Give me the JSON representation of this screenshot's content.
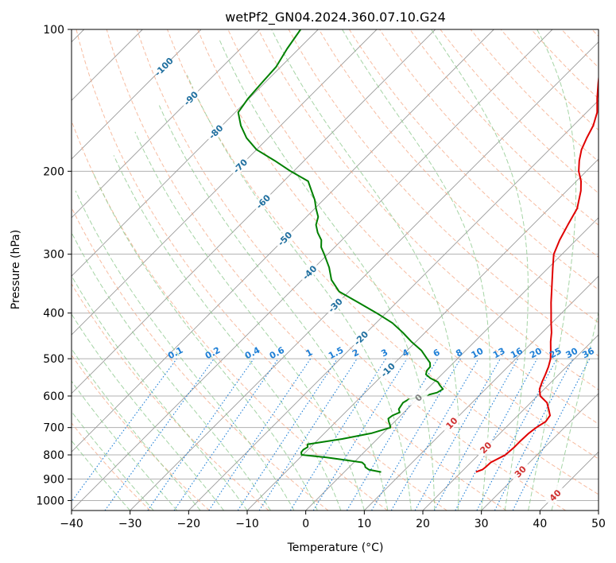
{
  "chart_data": {
    "type": "line",
    "title": "wetPf2_GN04.2024.360.07.10.G24",
    "xlabel": "Temperature (°C)",
    "ylabel": "Pressure (hPa)",
    "xlim": [
      -40,
      50
    ],
    "ylim": [
      1050,
      100
    ],
    "y_scale": "log",
    "grid": true,
    "x_ticks": [
      "−40",
      "−30",
      "−20",
      "−10",
      "0",
      "10",
      "20",
      "30",
      "40",
      "50"
    ],
    "x_tick_values": [
      -40,
      -30,
      -20,
      -10,
      0,
      10,
      20,
      30,
      40,
      50
    ],
    "y_ticks": [
      "100",
      "200",
      "300",
      "400",
      "500",
      "600",
      "700",
      "800",
      "900",
      "1000"
    ],
    "y_tick_values": [
      100,
      200,
      300,
      400,
      500,
      600,
      700,
      800,
      900,
      1000
    ],
    "colors": {
      "temperature": "#e00000",
      "dewpoint": "#008000",
      "isotherm": "#9a9a9a",
      "dry_adiabat": "#f4a582",
      "moist_adiabat": "#8fc98f",
      "mixing_ratio": "#1e7fd6",
      "isotherm_label": "#1f6f9f",
      "warm_label": "#d03030",
      "zero_label": "#808080",
      "grid": "#b0b0b0"
    },
    "isotherm_labels": [
      {
        "text": "-100",
        "t": -100,
        "p": 120
      },
      {
        "text": "-90",
        "t": -90,
        "p": 140
      },
      {
        "text": "-80",
        "t": -80,
        "p": 165
      },
      {
        "text": "-70",
        "t": -70,
        "p": 195
      },
      {
        "text": "-60",
        "t": -60,
        "p": 232
      },
      {
        "text": "-50",
        "t": -50,
        "p": 278
      },
      {
        "text": "-40",
        "t": -40,
        "p": 328
      },
      {
        "text": "-30",
        "t": -30,
        "p": 385
      },
      {
        "text": "-20",
        "t": -20,
        "p": 452
      },
      {
        "text": "-10",
        "t": -10,
        "p": 528
      },
      {
        "text": "0",
        "t": 0,
        "p": 605
      },
      {
        "text": "10",
        "t": 10,
        "p": 685
      },
      {
        "text": "20",
        "t": 20,
        "p": 772
      },
      {
        "text": "30",
        "t": 30,
        "p": 868
      },
      {
        "text": "40",
        "t": 40,
        "p": 975
      }
    ],
    "mixing_ratio_labels": [
      "0.1",
      "0.2",
      "0.4",
      "0.6",
      "1",
      "1.5",
      "2",
      "3",
      "4",
      "6",
      "8",
      "10",
      "13",
      "16",
      "20",
      "25",
      "30",
      "36"
    ],
    "mixing_ratio_values": [
      0.1,
      0.2,
      0.4,
      0.6,
      1,
      1.5,
      2,
      3,
      4,
      6,
      8,
      10,
      13,
      16,
      20,
      25,
      30,
      36
    ],
    "series": [
      {
        "key": "temperature",
        "p": [
          870,
          860,
          850,
          830,
          800,
          770,
          750,
          720,
          700,
          680,
          660,
          640,
          620,
          600,
          580,
          560,
          540,
          520,
          500,
          480,
          460,
          440,
          420,
          400,
          380,
          360,
          340,
          320,
          300,
          280,
          260,
          240,
          220,
          210,
          200,
          190,
          180,
          170,
          160,
          150,
          140,
          130,
          120,
          110,
          100
        ],
        "values": [
          22.5,
          23.2,
          23.3,
          23.4,
          24.6,
          24.8,
          24.8,
          24.9,
          25.2,
          25.8,
          25.5,
          24.2,
          22.8,
          20.5,
          19.2,
          18.4,
          17.7,
          16.9,
          15.9,
          14.5,
          13.0,
          11.6,
          9.9,
          8.2,
          6.4,
          4.6,
          2.7,
          0.7,
          -1.4,
          -2.8,
          -4.0,
          -5.2,
          -7.6,
          -9.2,
          -11.3,
          -13.0,
          -14.5,
          -15.6,
          -16.6,
          -18.2,
          -20.6,
          -23.0,
          -25.5,
          -28.0,
          -30.0
        ]
      },
      {
        "key": "dewpoint",
        "p": [
          870,
          860,
          850,
          840,
          830,
          820,
          810,
          800,
          790,
          780,
          770,
          760,
          740,
          720,
          700,
          690,
          680,
          670,
          660,
          650,
          640,
          630,
          620,
          610,
          600,
          590,
          580,
          570,
          560,
          550,
          540,
          530,
          520,
          510,
          500,
          480,
          460,
          440,
          420,
          400,
          380,
          360,
          340,
          320,
          300,
          290,
          280,
          270,
          260,
          250,
          240,
          230,
          220,
          210,
          200,
          190,
          180,
          170,
          160,
          150,
          140,
          130,
          120,
          110,
          100
        ],
        "values": [
          6.3,
          3.8,
          2.8,
          2.3,
          1.4,
          -2.0,
          -5.5,
          -10.2,
          -10.7,
          -10.8,
          -10.5,
          -11.0,
          -6.0,
          -2.0,
          0.3,
          -0.3,
          -1.0,
          -1.6,
          -1.4,
          -0.7,
          -1.4,
          -1.6,
          -1.8,
          -1.4,
          0.6,
          2.3,
          2.7,
          1.6,
          0.6,
          -1.3,
          -2.7,
          -3.2,
          -3.3,
          -4.0,
          -5.2,
          -7.6,
          -10.8,
          -13.8,
          -17.2,
          -21.6,
          -26.5,
          -31.7,
          -35.0,
          -37.5,
          -40.6,
          -42.3,
          -43.5,
          -45.4,
          -47.0,
          -48.0,
          -49.8,
          -51.5,
          -53.6,
          -55.8,
          -60.5,
          -65.0,
          -70.0,
          -73.7,
          -76.8,
          -79.5,
          -80.2,
          -80.5,
          -80.8,
          -82.0,
          -83.0
        ]
      }
    ]
  }
}
